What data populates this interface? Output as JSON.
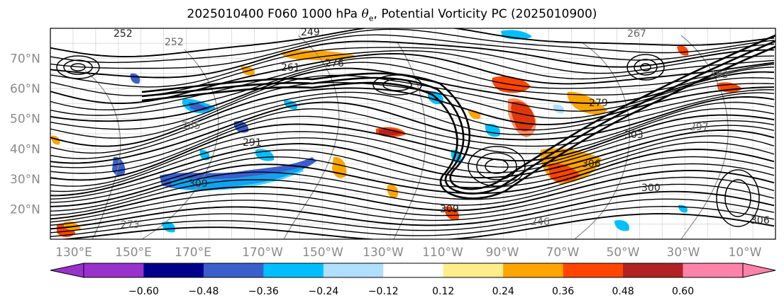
{
  "title": {
    "prefix": "2025010400 F060 1000 hPa ",
    "theta_symbol": "θ",
    "theta_sub": "e",
    "suffix": ", Potential Vorticity PC (2025010900)"
  },
  "map": {
    "lat_labels": [
      "70°N",
      "60°N",
      "50°N",
      "40°N",
      "30°N",
      "20°N"
    ],
    "lat_values": [
      70,
      60,
      50,
      40,
      30,
      20
    ],
    "lon_labels": [
      "130°E",
      "150°E",
      "170°E",
      "170°W",
      "150°W",
      "130°W",
      "110°W",
      "90°W",
      "70°W",
      "50°W",
      "30°W",
      "10°W"
    ],
    "lon_values": [
      130,
      150,
      170,
      -170,
      -150,
      -130,
      -110,
      -90,
      -70,
      -50,
      -30,
      -10
    ],
    "lat_range": [
      10,
      80
    ],
    "contour_labels_black": [
      "249",
      "261",
      "291",
      "309",
      "276",
      "306",
      "303",
      "279",
      "300",
      "306",
      "309",
      "252"
    ],
    "contour_labels_gray": [
      "252",
      "267",
      "285",
      "246",
      "303",
      "297",
      "273"
    ]
  },
  "colorbar": {
    "ticks": [
      "−0.60",
      "−0.48",
      "−0.36",
      "−0.24",
      "−0.12",
      "0.12",
      "0.24",
      "0.36",
      "0.48",
      "0.60"
    ],
    "bounds": [
      -0.6,
      -0.48,
      -0.36,
      -0.24,
      -0.12,
      0.12,
      0.24,
      0.36,
      0.48,
      0.6
    ],
    "colors": [
      "#9932cc",
      "#00008b",
      "#3a5fcd",
      "#00bfff",
      "#b0e0ff",
      "#ffffff",
      "#ffec8b",
      "#ffa500",
      "#ff4500",
      "#b22222",
      "#ff82ab",
      "#ff82ab"
    ],
    "under_color": "#9932cc",
    "over_color": "#ff82ab"
  },
  "anomaly_color_key": {
    "cold_dark": "#3a5fcd",
    "cold": "#00bfff",
    "cold_light": "#b0e0ff",
    "warm_light": "#ffec8b",
    "warm": "#ffa500",
    "warm_strong": "#ff4500",
    "warm_dark": "#b22222"
  }
}
